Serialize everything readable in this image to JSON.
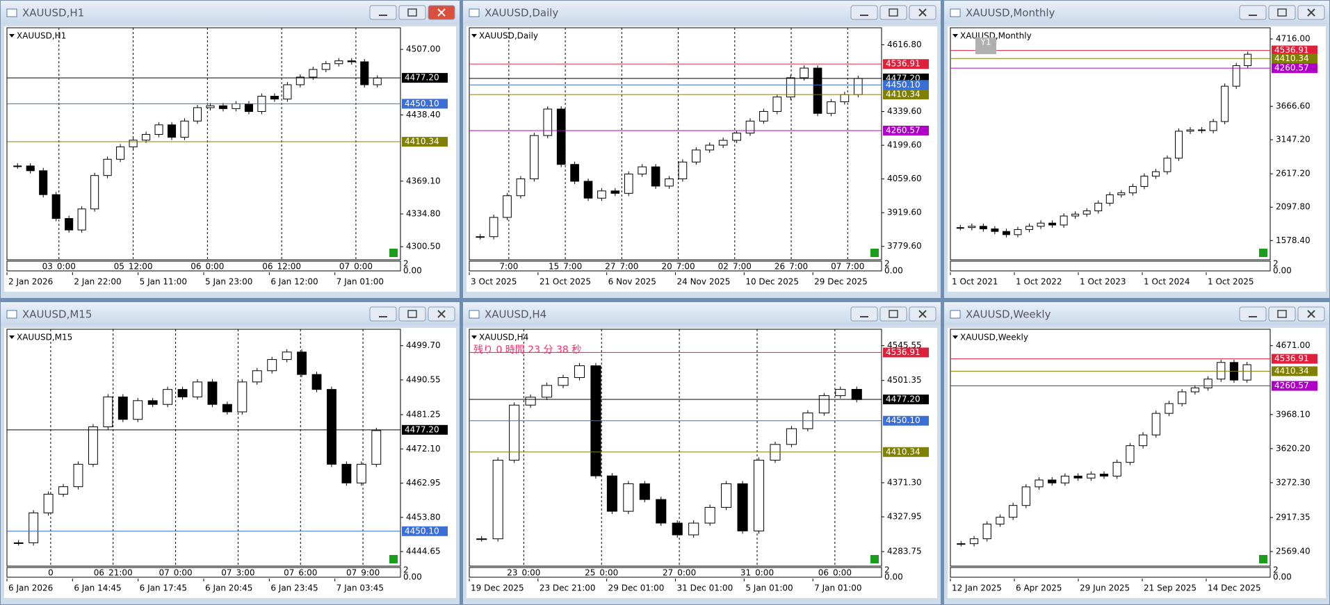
{
  "windows": [
    {
      "title": "XAUUSD,H1",
      "active": true,
      "chart": {
        "type": "candlestick",
        "label": "XAUUSD,H1",
        "ylim": [
          4286.8,
          4526.7
        ],
        "yticks": [
          {
            "value": 4507,
            "label": "4507.00"
          },
          {
            "value": 4438.4,
            "label": "4438.40"
          },
          {
            "value": 4369.1,
            "label": "4369.10"
          },
          {
            "value": 4334.8,
            "label": "4334.80"
          },
          {
            "value": 4300.5,
            "label": "4300.50"
          }
        ],
        "levels": [
          {
            "value": 4477.2,
            "label": "4477.20",
            "color": "#000000"
          },
          {
            "value": 4450.1,
            "label": "4450.10",
            "color": "#3a6fd8"
          },
          {
            "value": 4410.34,
            "label": "4410.34",
            "color": "#808000"
          }
        ],
        "closes": [
          4385,
          4380,
          4355,
          4330,
          4318,
          4340,
          4375,
          4392,
          4405,
          4412,
          4418,
          4428,
          4415,
          4432,
          4446,
          4448,
          4445,
          4450,
          4442,
          4458,
          4455,
          4470,
          4478,
          4486,
          4492,
          4495,
          4494,
          4470,
          4477
        ],
        "separators": [
          "03_0:00",
          "05_12:00",
          "06_0:00",
          "06_12:00",
          "07_0:00"
        ],
        "xlabels": [
          "2 Jan 2026",
          "2 Jan 22:00",
          "5 Jan 11:00",
          "5 Jan 23:00",
          "6 Jan 12:00",
          "7 Jan 01:00"
        ],
        "subwindow_ticks": [
          2,
          {
            "value": 0,
            "label": "0.00"
          }
        ]
      }
    },
    {
      "title": "XAUUSD,Daily",
      "active": false,
      "chart": {
        "type": "candlestick",
        "label": "XAUUSD,Daily",
        "ylim": [
          3724,
          4675.9
        ],
        "yticks": [
          {
            "value": 4616.8,
            "label": "4616.80"
          },
          {
            "value": 4339.6,
            "label": "4339.60"
          },
          {
            "value": 4199.6,
            "label": "4199.60"
          },
          {
            "value": 4059.6,
            "label": "4059.60"
          },
          {
            "value": 3919.6,
            "label": "3919.60"
          },
          {
            "value": 3779.6,
            "label": "3779.60"
          }
        ],
        "levels": [
          {
            "value": 4536.91,
            "label": "4536.91",
            "color": "#e0203a"
          },
          {
            "value": 4477.2,
            "label": "4477.20",
            "color": "#000000"
          },
          {
            "value": 4450.1,
            "label": "4450.10",
            "color": "#3a6fd8"
          },
          {
            "value": 4410.34,
            "label": "4410.34",
            "color": "#808000"
          },
          {
            "value": 4260.57,
            "label": "4260.57",
            "color": "#b000c8"
          }
        ],
        "closes": [
          3820,
          3900,
          3990,
          4060,
          4240,
          4350,
          4120,
          4050,
          3980,
          4010,
          4000,
          4080,
          4110,
          4030,
          4060,
          4130,
          4180,
          4200,
          4220,
          4250,
          4300,
          4340,
          4400,
          4480,
          4520,
          4332,
          4380,
          4410,
          4477
        ],
        "separators": [
          "7:00",
          "15_7:00",
          "27_7:00",
          "20_7:00",
          "02_7:00",
          "26_7:00",
          "07_7:00"
        ],
        "xlabels": [
          "3 Oct 2025",
          "21 Oct 2025",
          "6 Nov 2025",
          "24 Nov 2025",
          "10 Dec 2025",
          "29 Dec 2025"
        ],
        "subwindow_ticks": [
          2,
          {
            "value": 0,
            "label": "0.00"
          }
        ]
      }
    },
    {
      "title": "XAUUSD,Monthly",
      "active": false,
      "chart": {
        "type": "candlestick",
        "label": "XAUUSD,Monthly",
        "badge": "Y1",
        "ylim": [
          1279,
          4846
        ],
        "yticks": [
          {
            "value": 4716,
            "label": "4716.00"
          },
          {
            "value": 3666.6,
            "label": "3666.60"
          },
          {
            "value": 3147.2,
            "label": "3147.20"
          },
          {
            "value": 2617.2,
            "label": "2617.20"
          },
          {
            "value": 2097.8,
            "label": "2097.80"
          },
          {
            "value": 1578.4,
            "label": "1578.40"
          }
        ],
        "levels": [
          {
            "value": 4536.91,
            "label": "4536.91",
            "color": "#e0203a"
          },
          {
            "value": 4410.34,
            "label": "4410.34",
            "color": "#808000"
          },
          {
            "value": 4260.57,
            "label": "4260.57",
            "color": "#b000c8"
          }
        ],
        "closes": [
          1780,
          1800,
          1760,
          1720,
          1670,
          1750,
          1800,
          1850,
          1820,
          1960,
          1990,
          2040,
          2160,
          2290,
          2320,
          2420,
          2580,
          2650,
          2860,
          3280,
          3300,
          3290,
          3430,
          3980,
          4300,
          4477
        ],
        "separators": [],
        "xlabels": [
          "1 Oct 2021",
          "1 Oct 2022",
          "1 Oct 2023",
          "1 Oct 2024",
          "1 Oct 2025"
        ],
        "subwindow_ticks": [
          2,
          {
            "value": 0,
            "label": "0.00"
          }
        ]
      }
    },
    {
      "title": "XAUUSD,M15",
      "active": false,
      "chart": {
        "type": "candlestick",
        "label": "XAUUSD,M15",
        "ylim": [
          4440.77,
          4503.35
        ],
        "yticks": [
          {
            "value": 4499.7,
            "label": "4499.70"
          },
          {
            "value": 4490.55,
            "label": "4490.55"
          },
          {
            "value": 4481.25,
            "label": "4481.25"
          },
          {
            "value": 4472.1,
            "label": "4472.10"
          },
          {
            "value": 4462.95,
            "label": "4462.95"
          },
          {
            "value": 4453.8,
            "label": "4453.80"
          },
          {
            "value": 4444.65,
            "label": "4444.65"
          }
        ],
        "levels": [
          {
            "value": 4477.2,
            "label": "4477.20",
            "color": "#000000"
          },
          {
            "value": 4450.1,
            "label": "4450.10",
            "color": "#3a6fd8"
          }
        ],
        "closes": [
          4447,
          4455,
          4460,
          4462,
          4468,
          4478,
          4486,
          4480,
          4485,
          4484,
          4488,
          4486,
          4490,
          4484,
          4482,
          4490,
          4493,
          4496,
          4498,
          4492,
          4488,
          4468,
          4463,
          4468,
          4477
        ],
        "separators": [
          "0",
          "06_21:00",
          "07_0:00",
          "07_3:00",
          "07_6:00",
          "07_9:00"
        ],
        "xlabels": [
          "6 Jan 2026",
          "6 Jan 14:45",
          "6 Jan 17:45",
          "6 Jan 20:45",
          "6 Jan 23:45",
          "7 Jan 03:45"
        ],
        "subwindow_ticks": [
          2,
          {
            "value": 0,
            "label": "0.00"
          }
        ]
      }
    },
    {
      "title": "XAUUSD,H4",
      "active": false,
      "chart": {
        "type": "candlestick",
        "label": "XAUUSD,H4",
        "note": "残り 0 時間 23 分 38 秒",
        "ylim": [
          4265.3,
          4562.9
        ],
        "yticks": [
          {
            "value": 4545.55,
            "label": "4545.55"
          },
          {
            "value": 4501.35,
            "label": "4501.35"
          },
          {
            "value": 4371.3,
            "label": "4371.30"
          },
          {
            "value": 4327.95,
            "label": "4327.95"
          },
          {
            "value": 4283.75,
            "label": "4283.75"
          }
        ],
        "levels": [
          {
            "value": 4536.91,
            "label": "4536.91",
            "color": "#e0203a"
          },
          {
            "value": 4477.2,
            "label": "4477.20",
            "color": "#000000"
          },
          {
            "value": 4450.1,
            "label": "4450.10",
            "color": "#3a6fd8"
          },
          {
            "value": 4410.34,
            "label": "4410.34",
            "color": "#808000"
          }
        ],
        "closes": [
          4300,
          4400,
          4470,
          4480,
          4495,
          4505,
          4520,
          4380,
          4335,
          4370,
          4350,
          4320,
          4305,
          4320,
          4340,
          4370,
          4310,
          4400,
          4420,
          4440,
          4460,
          4482,
          4490,
          4477
        ],
        "separators": [
          "23_0:00",
          "25_0:00",
          "27_0:00",
          "31_0:00",
          "06_0:00"
        ],
        "xlabels": [
          "19 Dec 2025",
          "23 Dec 21:00",
          "29 Dec 01:00",
          "31 Dec 01:00",
          "5 Jan 01:00",
          "7 Jan 01:00"
        ],
        "subwindow_ticks": [
          2,
          {
            "value": 0,
            "label": "0.00"
          }
        ]
      }
    },
    {
      "title": "XAUUSD,Weekly",
      "active": false,
      "chart": {
        "type": "candlestick",
        "label": "XAUUSD,Weekly",
        "ylim": [
          2421,
          4810.5
        ],
        "yticks": [
          {
            "value": 4671,
            "label": "4671.00"
          },
          {
            "value": 3968.1,
            "label": "3968.10"
          },
          {
            "value": 3620.2,
            "label": "3620.20"
          },
          {
            "value": 3272.3,
            "label": "3272.30"
          },
          {
            "value": 2917.35,
            "label": "2917.35"
          },
          {
            "value": 2569.4,
            "label": "2569.40"
          }
        ],
        "levels": [
          {
            "value": 4536.91,
            "label": "4536.91",
            "color": "#e0203a"
          },
          {
            "value": 4410.34,
            "label": "4410.34",
            "color": "#808000"
          },
          {
            "value": 4260.57,
            "label": "4260.57",
            "color": "#b000c8"
          }
        ],
        "closes": [
          2650,
          2700,
          2850,
          2920,
          3040,
          3230,
          3300,
          3270,
          3340,
          3320,
          3360,
          3340,
          3480,
          3650,
          3760,
          3980,
          4080,
          4200,
          4240,
          4330,
          4500,
          4320,
          4477
        ],
        "separators": [],
        "xlabels": [
          "12 Jan 2025",
          "6 Apr 2025",
          "29 Jun 2025",
          "21 Sep 2025",
          "14 Dec 2025"
        ],
        "subwindow_ticks": [
          2,
          {
            "value": 0,
            "label": "0.00"
          }
        ]
      }
    }
  ]
}
